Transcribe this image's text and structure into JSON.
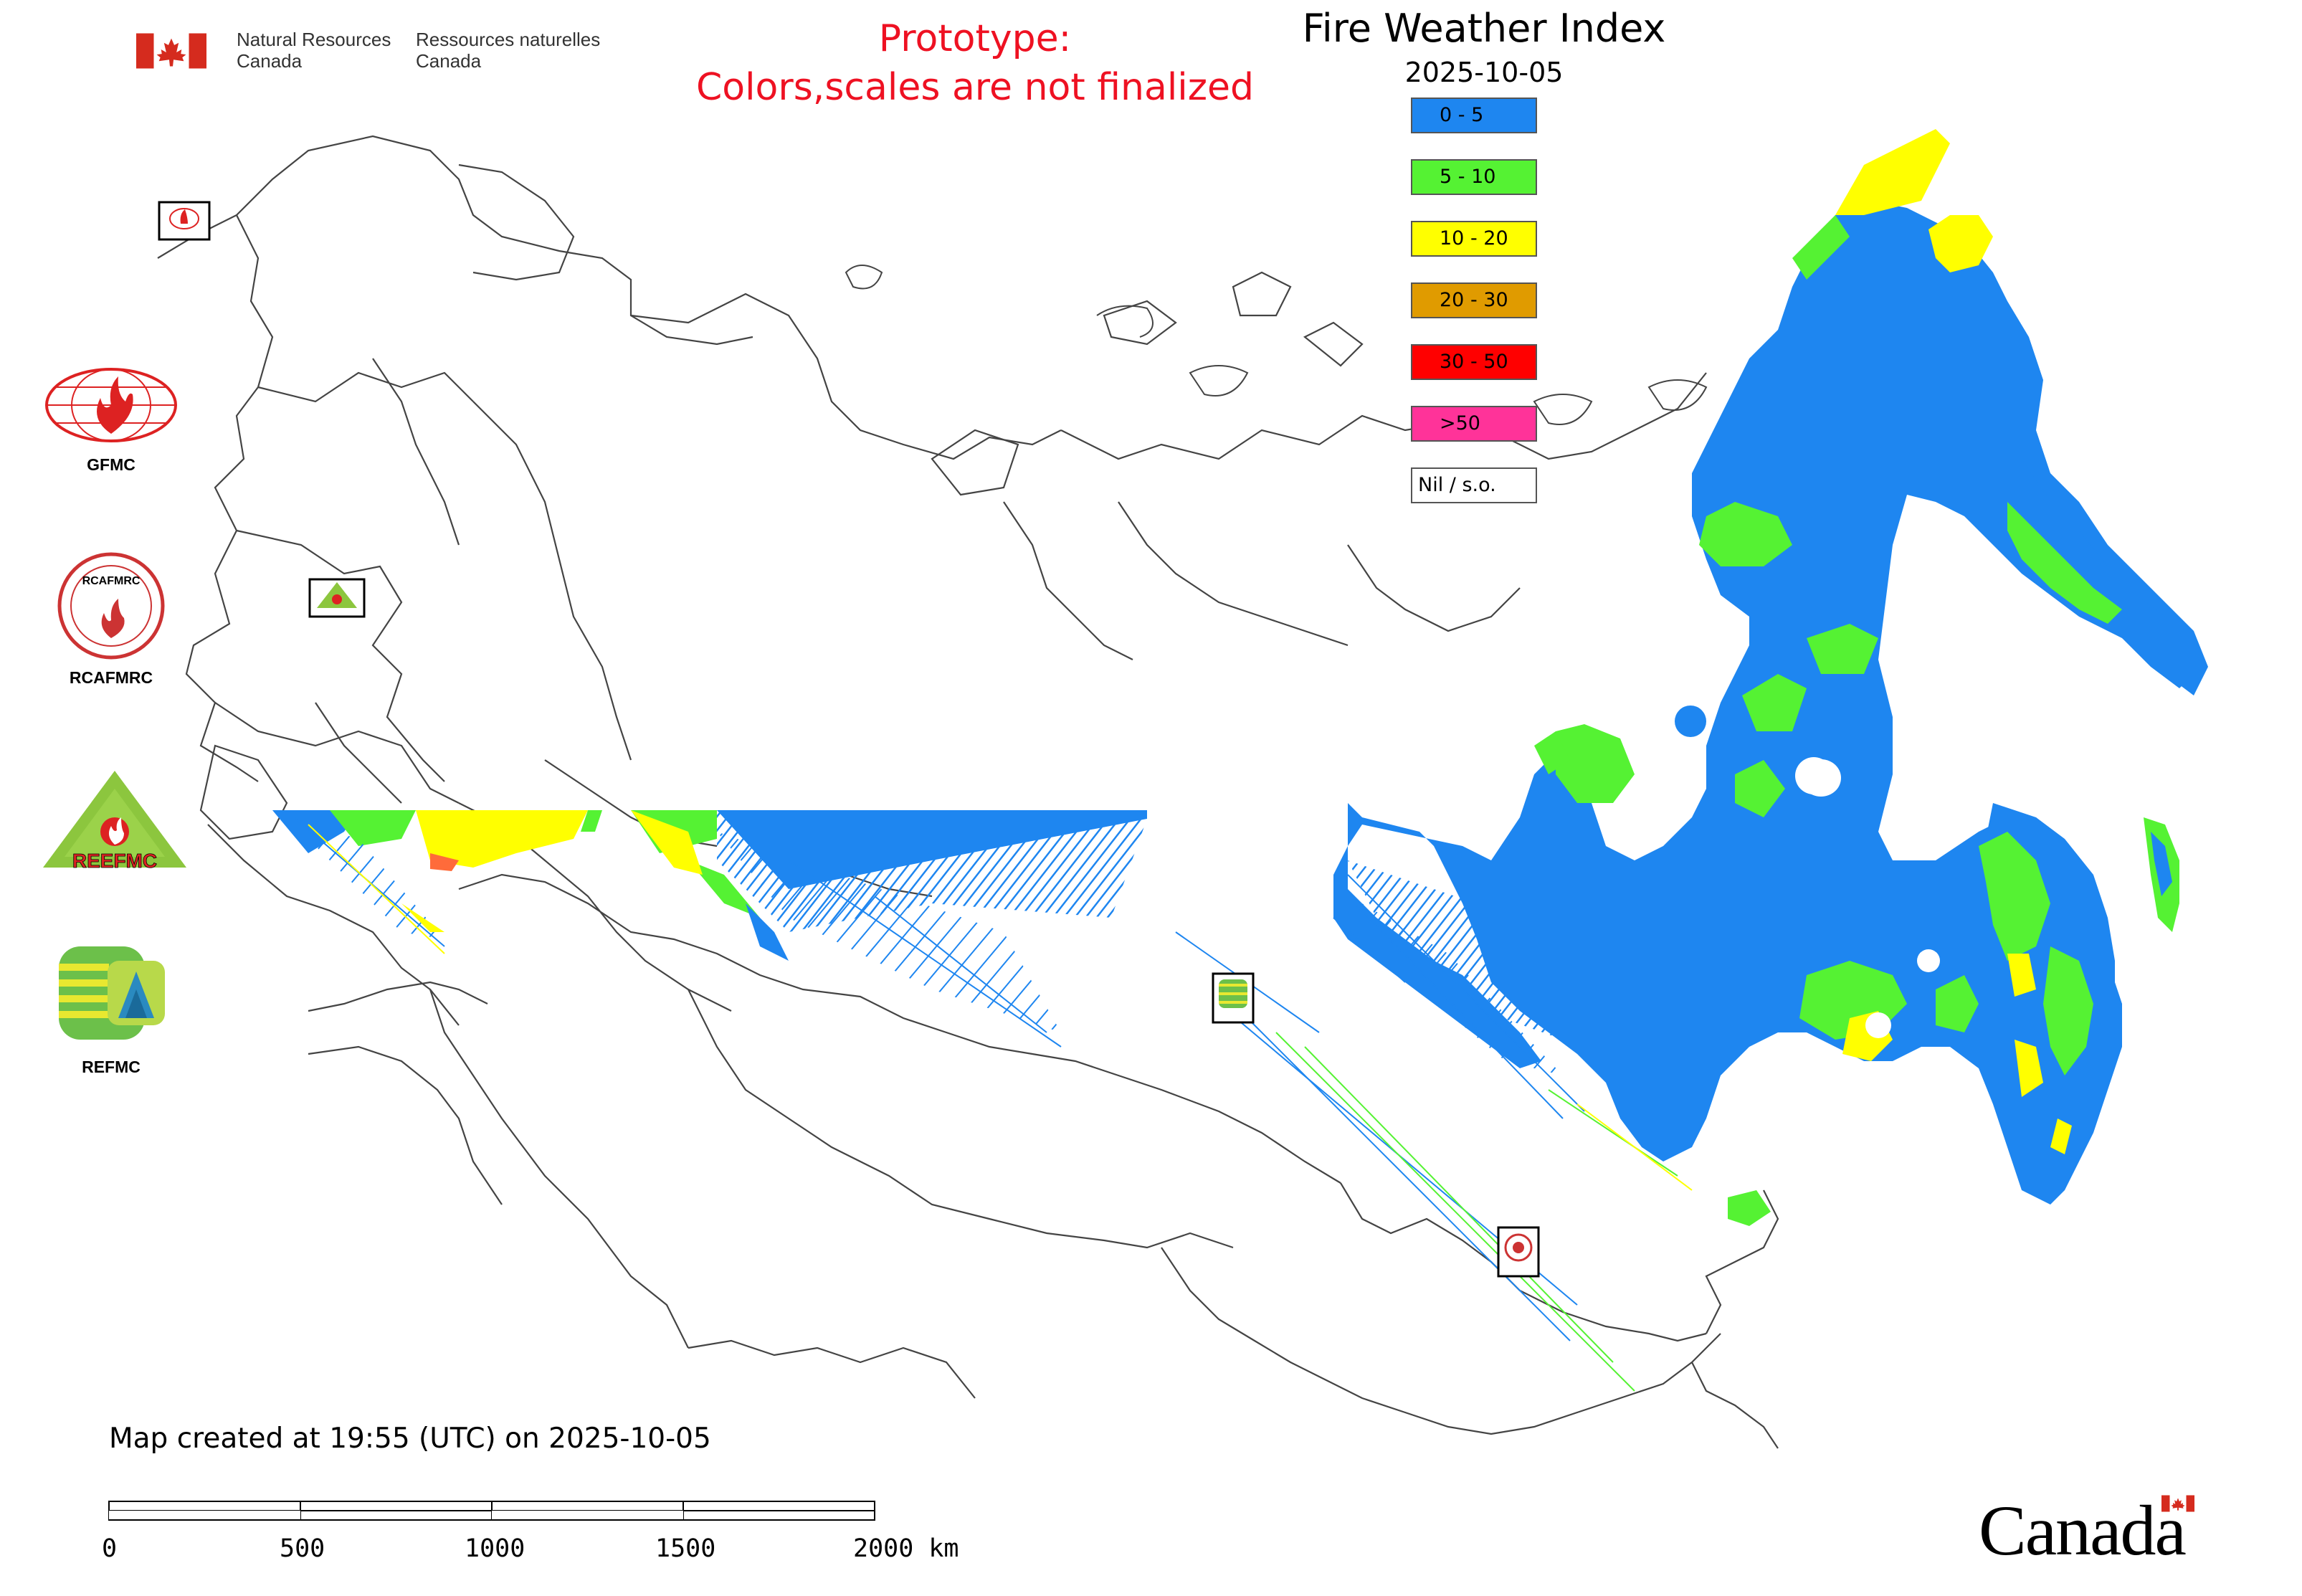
{
  "header": {
    "gov_en_line1": "Natural Resources",
    "gov_en_line2": "Canada",
    "gov_fr_line1": "Ressources naturelles",
    "gov_fr_line2": "Canada",
    "prototype_line1": "Prototype:",
    "prototype_line2": "Colors,scales are not finalized",
    "title": "Fire Weather Index",
    "date": "2025-10-05"
  },
  "legend": {
    "items": [
      {
        "label": "0 - 5",
        "color": "#1e86f0"
      },
      {
        "label": "5 - 10",
        "color": "#55f233"
      },
      {
        "label": "10 - 20",
        "color": "#ffff00"
      },
      {
        "label": "20 - 30",
        "color": "#e09b00"
      },
      {
        "label": "30 - 50",
        "color": "#ff0000"
      },
      {
        "label": ">50",
        "color": "#ff3399"
      },
      {
        "label": "Nil / s.o.",
        "color": "#ffffff"
      }
    ]
  },
  "partners": [
    {
      "name": "GFMC",
      "icon": "gfmc-logo-icon"
    },
    {
      "name": "RCAFMRC",
      "icon": "rcafmrc-logo-icon"
    },
    {
      "name": "REEFMC",
      "icon": "reefmc-logo-icon"
    },
    {
      "name": "REFMC",
      "icon": "refmc-logo-icon"
    }
  ],
  "logo_texts": {
    "reefmc_wordmark": "REEFMC",
    "rcafmrc_wordmark": "RCAFMRC"
  },
  "footer": {
    "created_note": "Map created at 19:55 (UTC) on 2025-10-05",
    "wordmark": "Canada"
  },
  "scale": {
    "ticks": [
      "0",
      "500",
      "1000",
      "1500",
      "2000 km"
    ]
  },
  "colors": {
    "prototype_red": "#ee1122",
    "canada_red": "#d52b1e",
    "boundary": "#444444"
  }
}
